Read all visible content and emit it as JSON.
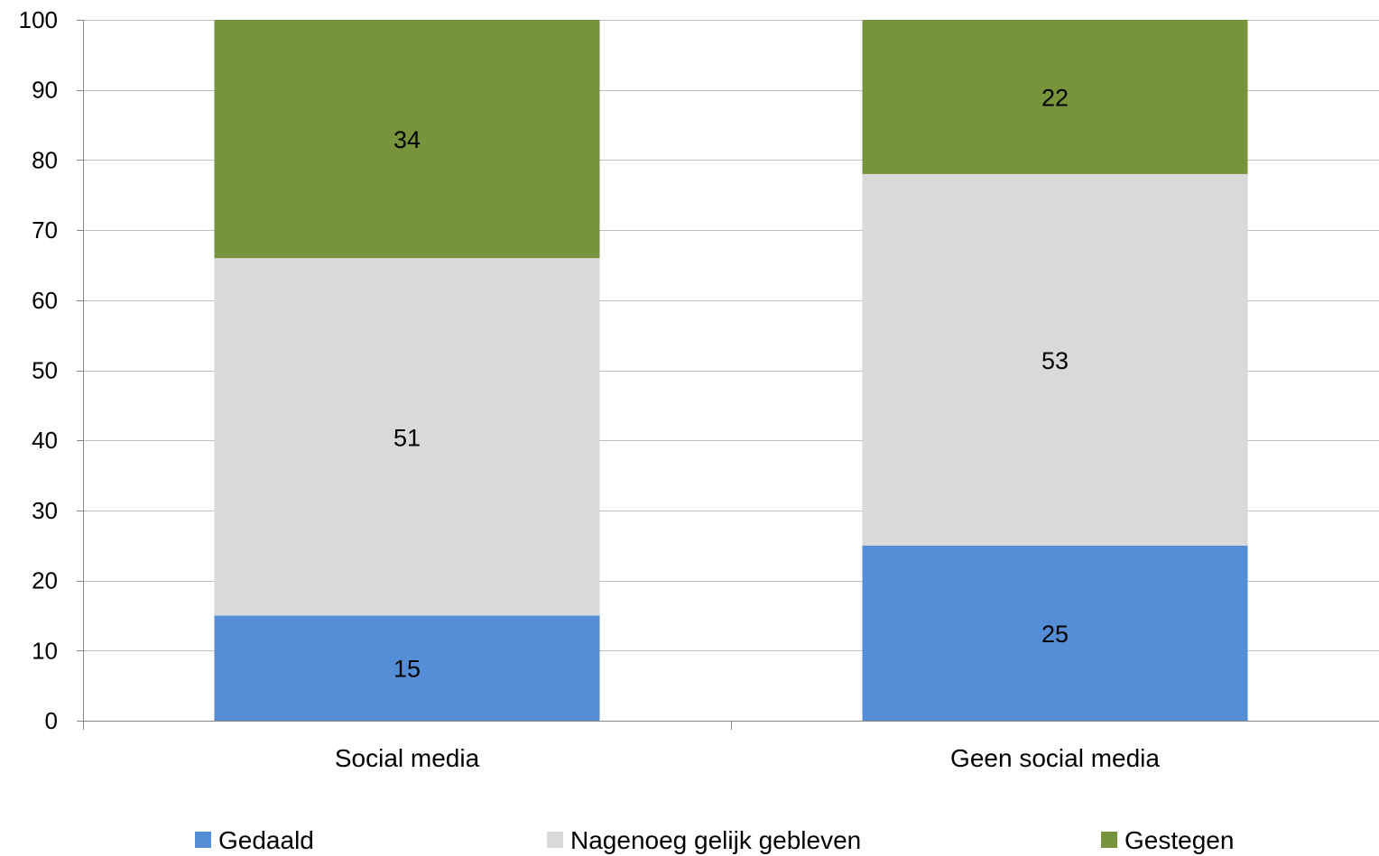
{
  "chart_data": {
    "type": "bar",
    "stacked": true,
    "categories": [
      "Social media",
      "Geen social media"
    ],
    "series": [
      {
        "name": "Gedaald",
        "values": [
          15,
          25
        ],
        "color": "#558ED5"
      },
      {
        "name": "Nagenoeg gelijk gebleven",
        "values": [
          51,
          53
        ],
        "color": "#D9D9D9"
      },
      {
        "name": "Gestegen",
        "values": [
          34,
          22
        ],
        "color": "#77933C"
      }
    ],
    "title": "",
    "xlabel": "",
    "ylabel": "",
    "ylim": [
      0,
      100
    ],
    "yticks": [
      "0",
      "10",
      "20",
      "30",
      "40",
      "50",
      "60",
      "70",
      "80",
      "90",
      "100"
    ],
    "grid": true,
    "legend": "bottom",
    "gridline_color": "#BFBFBF",
    "axis_color": "#868686"
  }
}
